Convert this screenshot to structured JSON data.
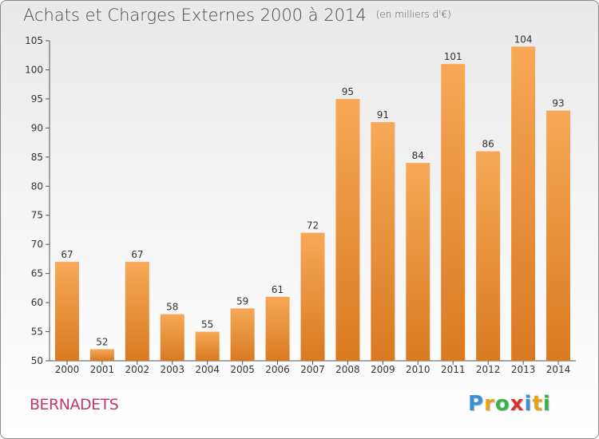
{
  "chart_data": {
    "type": "bar",
    "title": "Achats et Charges Externes 2000 à 2014",
    "subtitle": "(en milliers d'€)",
    "categories": [
      "2000",
      "2001",
      "2002",
      "2003",
      "2004",
      "2005",
      "2006",
      "2007",
      "2008",
      "2009",
      "2010",
      "2011",
      "2012",
      "2013",
      "2014"
    ],
    "values": [
      67,
      52,
      67,
      58,
      55,
      59,
      61,
      72,
      95,
      91,
      84,
      101,
      86,
      104,
      93
    ],
    "ylim": [
      50,
      105
    ],
    "yticks": [
      50,
      55,
      60,
      65,
      70,
      75,
      80,
      85,
      90,
      95,
      100,
      105
    ],
    "xlabel": "",
    "ylabel": "",
    "grid": false,
    "bar_color_light": "#f7a857",
    "bar_color_dark": "#d97a22"
  },
  "footer": {
    "commune": "BERNADETS",
    "brand_letters": [
      "P",
      "r",
      "o",
      "x",
      "i",
      "t",
      "i"
    ],
    "brand_colors": [
      "#3b8fd6",
      "#e8a017",
      "#3bb14a",
      "#d8322e",
      "#3b8fd6",
      "#e8a017",
      "#3bb14a"
    ]
  }
}
